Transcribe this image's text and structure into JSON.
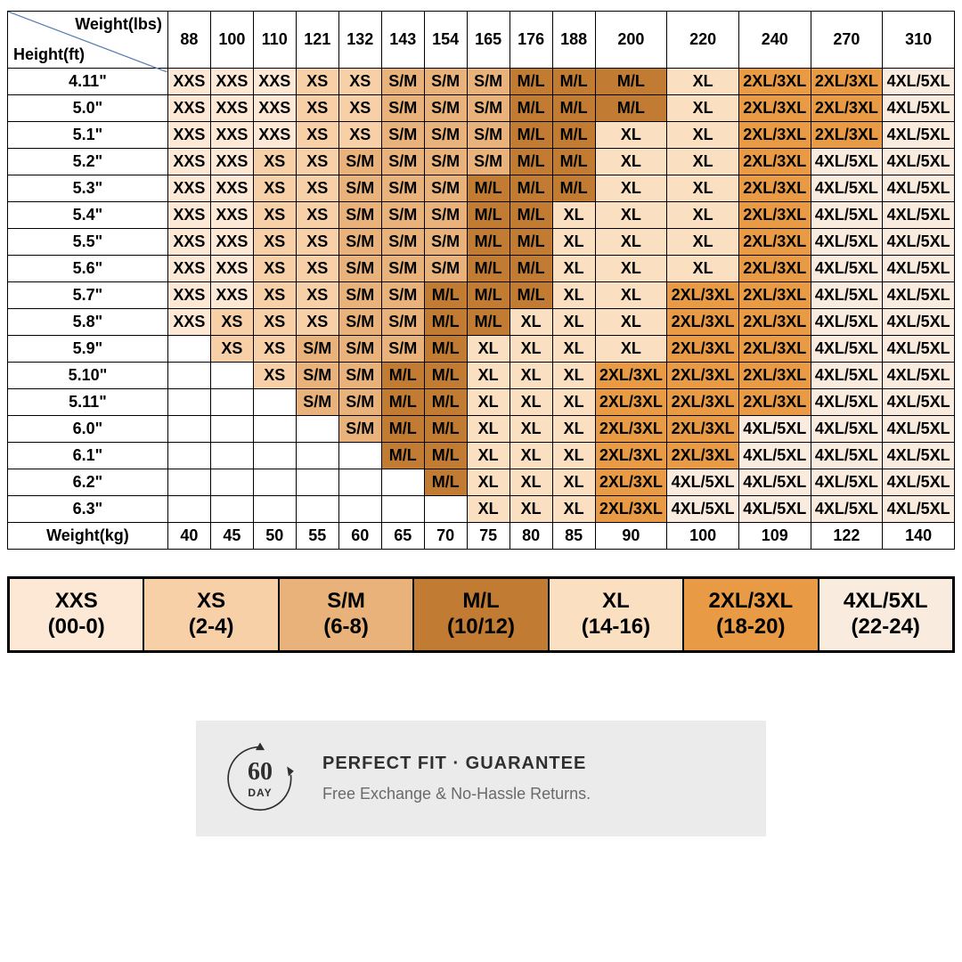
{
  "size_chart": {
    "type": "table",
    "header": {
      "weight_lbs_label": "Weight(lbs)",
      "height_ft_label": "Height(ft)",
      "diagonal_color": "#5b7fb0"
    },
    "columns_lbs": [
      "88",
      "100",
      "110",
      "121",
      "132",
      "143",
      "154",
      "165",
      "176",
      "188",
      "200",
      "220",
      "240",
      "270",
      "310"
    ],
    "columns_kg_label": "Weight(kg)",
    "columns_kg": [
      "40",
      "45",
      "50",
      "55",
      "60",
      "65",
      "70",
      "75",
      "80",
      "85",
      "90",
      "100",
      "109",
      "122",
      "140"
    ],
    "heights": [
      "4.11\"",
      "5.0\"",
      "5.1\"",
      "5.2\"",
      "5.3\"",
      "5.4\"",
      "5.5\"",
      "5.6\"",
      "5.7\"",
      "5.8\"",
      "5.9\"",
      "5.10\"",
      "5.11\"",
      "6.0\"",
      "6.1\"",
      "6.2\"",
      "6.3\""
    ],
    "cells": [
      [
        "XXS",
        "XXS",
        "XXS",
        "XS",
        "XS",
        "S/M",
        "S/M",
        "S/M",
        "M/L",
        "M/L",
        "M/L",
        "XL",
        "2XL/3XL",
        "2XL/3XL",
        "4XL/5XL"
      ],
      [
        "XXS",
        "XXS",
        "XXS",
        "XS",
        "XS",
        "S/M",
        "S/M",
        "S/M",
        "M/L",
        "M/L",
        "M/L",
        "XL",
        "2XL/3XL",
        "2XL/3XL",
        "4XL/5XL"
      ],
      [
        "XXS",
        "XXS",
        "XXS",
        "XS",
        "XS",
        "S/M",
        "S/M",
        "S/M",
        "M/L",
        "M/L",
        "XL",
        "XL",
        "2XL/3XL",
        "2XL/3XL",
        "4XL/5XL"
      ],
      [
        "XXS",
        "XXS",
        "XS",
        "XS",
        "S/M",
        "S/M",
        "S/M",
        "S/M",
        "M/L",
        "M/L",
        "XL",
        "XL",
        "2XL/3XL",
        "4XL/5XL",
        "4XL/5XL"
      ],
      [
        "XXS",
        "XXS",
        "XS",
        "XS",
        "S/M",
        "S/M",
        "S/M",
        "M/L",
        "M/L",
        "M/L",
        "XL",
        "XL",
        "2XL/3XL",
        "4XL/5XL",
        "4XL/5XL"
      ],
      [
        "XXS",
        "XXS",
        "XS",
        "XS",
        "S/M",
        "S/M",
        "S/M",
        "M/L",
        "M/L",
        "XL",
        "XL",
        "XL",
        "2XL/3XL",
        "4XL/5XL",
        "4XL/5XL"
      ],
      [
        "XXS",
        "XXS",
        "XS",
        "XS",
        "S/M",
        "S/M",
        "S/M",
        "M/L",
        "M/L",
        "XL",
        "XL",
        "XL",
        "2XL/3XL",
        "4XL/5XL",
        "4XL/5XL"
      ],
      [
        "XXS",
        "XXS",
        "XS",
        "XS",
        "S/M",
        "S/M",
        "S/M",
        "M/L",
        "M/L",
        "XL",
        "XL",
        "XL",
        "2XL/3XL",
        "4XL/5XL",
        "4XL/5XL"
      ],
      [
        "XXS",
        "XXS",
        "XS",
        "XS",
        "S/M",
        "S/M",
        "M/L",
        "M/L",
        "M/L",
        "XL",
        "XL",
        "2XL/3XL",
        "2XL/3XL",
        "4XL/5XL",
        "4XL/5XL"
      ],
      [
        "XXS",
        "XS",
        "XS",
        "XS",
        "S/M",
        "S/M",
        "M/L",
        "M/L",
        "XL",
        "XL",
        "XL",
        "2XL/3XL",
        "2XL/3XL",
        "4XL/5XL",
        "4XL/5XL"
      ],
      [
        "",
        "XS",
        "XS",
        "S/M",
        "S/M",
        "S/M",
        "M/L",
        "XL",
        "XL",
        "XL",
        "XL",
        "2XL/3XL",
        "2XL/3XL",
        "4XL/5XL",
        "4XL/5XL"
      ],
      [
        "",
        "",
        "XS",
        "S/M",
        "S/M",
        "M/L",
        "M/L",
        "XL",
        "XL",
        "XL",
        "2XL/3XL",
        "2XL/3XL",
        "2XL/3XL",
        "4XL/5XL",
        "4XL/5XL"
      ],
      [
        "",
        "",
        "",
        "S/M",
        "S/M",
        "M/L",
        "M/L",
        "XL",
        "XL",
        "XL",
        "2XL/3XL",
        "2XL/3XL",
        "2XL/3XL",
        "4XL/5XL",
        "4XL/5XL"
      ],
      [
        "",
        "",
        "",
        "",
        "S/M",
        "M/L",
        "M/L",
        "XL",
        "XL",
        "XL",
        "2XL/3XL",
        "2XL/3XL",
        "4XL/5XL",
        "4XL/5XL",
        "4XL/5XL"
      ],
      [
        "",
        "",
        "",
        "",
        "",
        "M/L",
        "M/L",
        "XL",
        "XL",
        "XL",
        "2XL/3XL",
        "2XL/3XL",
        "4XL/5XL",
        "4XL/5XL",
        "4XL/5XL"
      ],
      [
        "",
        "",
        "",
        "",
        "",
        "",
        "M/L",
        "XL",
        "XL",
        "XL",
        "2XL/3XL",
        "4XL/5XL",
        "4XL/5XL",
        "4XL/5XL",
        "4XL/5XL"
      ],
      [
        "",
        "",
        "",
        "",
        "",
        "",
        "",
        "XL",
        "XL",
        "XL",
        "2XL/3XL",
        "4XL/5XL",
        "4XL/5XL",
        "4XL/5XL",
        "4XL/5XL"
      ]
    ],
    "size_colors": {
      "": "#ffffff",
      "XXS": "#fde8d5",
      "XS": "#f7d0a8",
      "S/M": "#e9b27a",
      "M/L": "#c17b32",
      "XL": "#fadfc1",
      "2XL/3XL": "#e99a45",
      "4XL/5XL": "#f9ecde"
    },
    "border_color": "#000000",
    "col_widths": {
      "first": 165,
      "narrow": 44,
      "wide": 74
    }
  },
  "legend": {
    "items": [
      {
        "size": "XXS",
        "range": "(00-0)",
        "color": "#fde8d5"
      },
      {
        "size": "XS",
        "range": "(2-4)",
        "color": "#f7d0a8"
      },
      {
        "size": "S/M",
        "range": "(6-8)",
        "color": "#e9b27a"
      },
      {
        "size": "M/L",
        "range": "(10/12)",
        "color": "#c17b32"
      },
      {
        "size": "XL",
        "range": "(14-16)",
        "color": "#fadfc1"
      },
      {
        "size": "2XL/3XL",
        "range": "(18-20)",
        "color": "#e99a45"
      },
      {
        "size": "4XL/5XL",
        "range": "(22-24)",
        "color": "#f9ecde"
      }
    ],
    "border_color": "#000000",
    "font_size": 24
  },
  "guarantee": {
    "badge_number": "60",
    "badge_unit": "DAY",
    "title": "PERFECT FIT · GUARANTEE",
    "subtitle": "Free Exchange & No-Hassle Returns.",
    "background": "#ebebeb",
    "title_color": "#2f2f2f",
    "subtitle_color": "#6a6a6a"
  }
}
